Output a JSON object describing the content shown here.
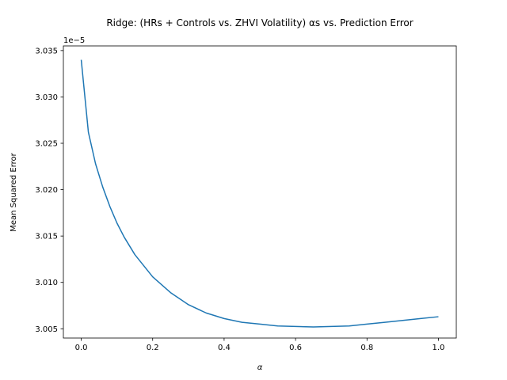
{
  "chart_data": {
    "type": "line",
    "title": "Ridge: (HRs + Controls vs. ZHVI Volatility) αs vs. Prediction Error",
    "xlabel": "α",
    "ylabel": "Mean Squared Error",
    "offset_text": "1e−5",
    "xlim": [
      -0.05,
      1.05
    ],
    "ylim": [
      3.004,
      3.0355
    ],
    "grid": false,
    "x_ticks": [
      0.0,
      0.2,
      0.4,
      0.6,
      0.8,
      1.0
    ],
    "x_tick_labels": [
      "0.0",
      "0.2",
      "0.4",
      "0.6",
      "0.8",
      "1.0"
    ],
    "y_ticks": [
      3.005,
      3.01,
      3.015,
      3.02,
      3.025,
      3.03,
      3.035
    ],
    "y_tick_labels": [
      "3.005",
      "3.010",
      "3.015",
      "3.020",
      "3.025",
      "3.030",
      "3.035"
    ],
    "series": [
      {
        "color": "#1f77b4",
        "x": [
          0.0,
          0.02,
          0.04,
          0.06,
          0.08,
          0.1,
          0.12,
          0.15,
          0.2,
          0.25,
          0.3,
          0.35,
          0.4,
          0.45,
          0.5,
          0.55,
          0.6,
          0.65,
          0.7,
          0.75,
          0.8,
          0.85,
          0.9,
          0.95,
          1.0
        ],
        "y": [
          3.034,
          3.0262,
          3.0228,
          3.0203,
          3.0182,
          3.0164,
          3.0149,
          3.013,
          3.0106,
          3.0089,
          3.0076,
          3.0067,
          3.0061,
          3.0057,
          3.0055,
          3.0053,
          3.00525,
          3.0052,
          3.00525,
          3.0053,
          3.0055,
          3.0057,
          3.0059,
          3.0061,
          3.0063
        ]
      }
    ]
  }
}
